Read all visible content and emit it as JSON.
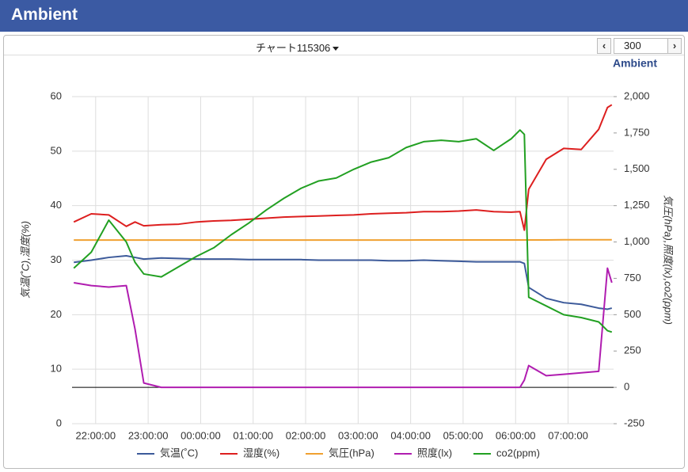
{
  "header": {
    "title": "Ambient"
  },
  "toolbar": {
    "chart_name": "チャート115306",
    "count": 300
  },
  "chart_data": {
    "type": "line",
    "title": "Ambient",
    "y_label": "気温(˚C),湿度(%)",
    "y2_label": "気圧(hPa),照度(lx),co2(ppm)",
    "x": [
      "21:35:00",
      "21:55:00",
      "22:15:00",
      "22:35:00",
      "22:45:00",
      "22:55:00",
      "23:15:00",
      "23:35:00",
      "23:55:00",
      "00:15:00",
      "00:35:00",
      "00:55:00",
      "01:15:00",
      "01:35:00",
      "01:55:00",
      "02:15:00",
      "02:35:00",
      "02:55:00",
      "03:15:00",
      "03:35:00",
      "03:55:00",
      "04:15:00",
      "04:35:00",
      "04:55:00",
      "05:15:00",
      "05:35:00",
      "05:55:00",
      "06:05:00",
      "06:10:00",
      "06:15:00",
      "06:35:00",
      "06:55:00",
      "07:15:00",
      "07:35:00",
      "07:45:00",
      "07:50:00"
    ],
    "xlim": [
      "21:33:00",
      "07:52:00"
    ],
    "xticks": [
      "22:00:00",
      "23:00:00",
      "00:00:00",
      "01:00:00",
      "02:00:00",
      "03:00:00",
      "04:00:00",
      "05:00:00",
      "06:00:00",
      "07:00:00"
    ],
    "ylim": [
      0,
      60
    ],
    "yticks": [
      0,
      10,
      20,
      30,
      40,
      50,
      60
    ],
    "y2lim": [
      -250,
      2000
    ],
    "y2ticks": [
      -250,
      0,
      250,
      500,
      750,
      {
        "value": 1000,
        "label": "1,000"
      },
      {
        "value": 1250,
        "label": "1,250"
      },
      {
        "value": 1500,
        "label": "1,500"
      },
      {
        "value": 1750,
        "label": "1,750"
      },
      {
        "value": 2000,
        "label": "2,000"
      }
    ],
    "grid": true,
    "legend": "bottom",
    "series": [
      {
        "name": "気温(˚C)",
        "color": "#3c5a9a",
        "values": [
          29.6,
          30.0,
          30.5,
          30.8,
          30.5,
          30.2,
          30.4,
          30.3,
          30.2,
          30.2,
          30.2,
          30.1,
          30.1,
          30.1,
          30.1,
          30.0,
          30.0,
          30.0,
          30.0,
          29.9,
          29.9,
          30.0,
          29.9,
          29.8,
          29.7,
          29.7,
          29.7,
          29.7,
          29.4,
          25.0,
          23.0,
          22.2,
          21.9,
          21.2,
          21.0,
          21.2
        ]
      },
      {
        "name": "湿度(%)",
        "color": "#dd1f1f",
        "values": [
          37.0,
          38.5,
          38.3,
          36.2,
          37.0,
          36.3,
          36.5,
          36.6,
          37.0,
          37.2,
          37.3,
          37.5,
          37.7,
          37.9,
          38.0,
          38.1,
          38.2,
          38.3,
          38.5,
          38.6,
          38.7,
          38.9,
          38.9,
          39.0,
          39.2,
          38.9,
          38.8,
          38.9,
          35.5,
          43.0,
          48.5,
          50.5,
          50.3,
          54.0,
          58.0,
          58.5
        ]
      },
      {
        "name": "気圧(hPa)",
        "color": "#f0a030",
        "axis": "y2",
        "values": [
          1013,
          1013,
          1013,
          1013,
          1013,
          1013,
          1013,
          1013,
          1013,
          1013,
          1013,
          1013,
          1013,
          1013,
          1013,
          1013,
          1013,
          1013,
          1013,
          1013,
          1013,
          1014,
          1014,
          1014,
          1014,
          1014,
          1014,
          1014,
          1014,
          1014,
          1014,
          1015,
          1015,
          1015,
          1015,
          1015
        ]
      },
      {
        "name": "照度(lx)",
        "color": "#b01db0",
        "axis": "y2",
        "values": [
          720,
          700,
          690,
          700,
          400,
          30,
          0,
          0,
          0,
          0,
          0,
          0,
          0,
          0,
          0,
          0,
          0,
          0,
          0,
          0,
          0,
          0,
          0,
          0,
          0,
          0,
          0,
          0,
          50,
          150,
          80,
          90,
          100,
          110,
          820,
          720
        ]
      },
      {
        "name": "co2(ppm)",
        "color": "#22a022",
        "axis": "y2",
        "values": [
          820,
          930,
          1150,
          1000,
          860,
          780,
          760,
          830,
          900,
          960,
          1050,
          1130,
          1220,
          1300,
          1370,
          1420,
          1440,
          1500,
          1550,
          1580,
          1650,
          1690,
          1700,
          1690,
          1710,
          1630,
          1710,
          1770,
          1740,
          620,
          560,
          500,
          480,
          450,
          390,
          380
        ]
      }
    ]
  }
}
